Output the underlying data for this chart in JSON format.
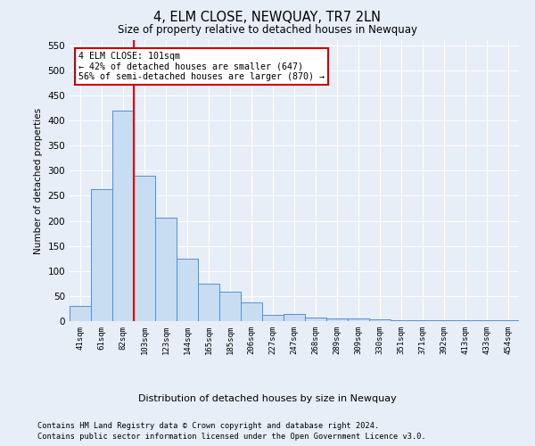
{
  "title": "4, ELM CLOSE, NEWQUAY, TR7 2LN",
  "subtitle": "Size of property relative to detached houses in Newquay",
  "xlabel": "Distribution of detached houses by size in Newquay",
  "ylabel": "Number of detached properties",
  "categories": [
    "41sqm",
    "61sqm",
    "82sqm",
    "103sqm",
    "123sqm",
    "144sqm",
    "165sqm",
    "185sqm",
    "206sqm",
    "227sqm",
    "247sqm",
    "268sqm",
    "289sqm",
    "309sqm",
    "330sqm",
    "351sqm",
    "371sqm",
    "392sqm",
    "413sqm",
    "433sqm",
    "454sqm"
  ],
  "values": [
    30,
    263,
    420,
    290,
    207,
    125,
    75,
    58,
    38,
    13,
    14,
    8,
    6,
    5,
    3,
    2,
    2,
    1,
    1,
    1,
    1
  ],
  "bar_color": "#c9ddf2",
  "bar_edge_color": "#5b8fc9",
  "annotation_title": "4 ELM CLOSE: 101sqm",
  "annotation_line1": "← 42% of detached houses are smaller (647)",
  "annotation_line2": "56% of semi-detached houses are larger (870) →",
  "annotation_box_color": "#ffffff",
  "annotation_box_edge": "#cc0000",
  "red_line_x": 2.5,
  "ylim": [
    0,
    560
  ],
  "yticks": [
    0,
    50,
    100,
    150,
    200,
    250,
    300,
    350,
    400,
    450,
    500,
    550
  ],
  "footnote1": "Contains HM Land Registry data © Crown copyright and database right 2024.",
  "footnote2": "Contains public sector information licensed under the Open Government Licence v3.0.",
  "bg_color": "#e8eef8",
  "plot_bg_color": "#e8eef8",
  "grid_color": "#ffffff"
}
